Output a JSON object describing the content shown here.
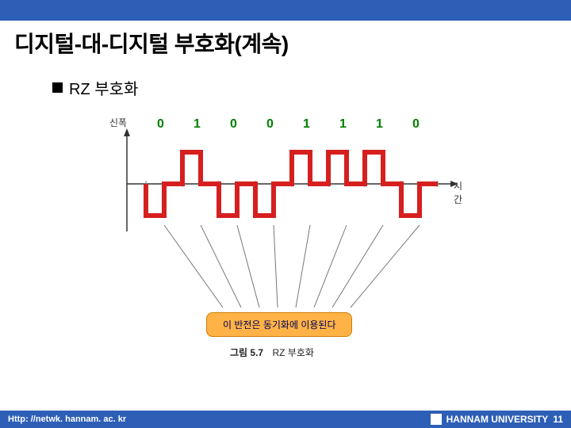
{
  "slide": {
    "title": "디지털-대-디지털 부호화(계속)",
    "bullet": "RZ 부호화",
    "bits": [
      "0",
      "1",
      "0",
      "0",
      "1",
      "1",
      "1",
      "0"
    ],
    "yAxisLabel": "신폭",
    "xAxisLabel": "시간",
    "captionBox": "이 반전은 동기화에 이용된다",
    "figLabel": "그림 5.7",
    "figTitle": "RZ 부호화"
  },
  "footer": {
    "url": "Http: //netwk. hannam. ac. kr",
    "uni": "HANNAM  UNIVERSITY",
    "page": "11"
  },
  "chart": {
    "colors": {
      "waveform": "#d61f1f",
      "axis": "#333333",
      "bit": "#008000",
      "tick": "#888888",
      "guideline": "#777777",
      "captionFill": "#ffb347",
      "captionStroke": "#d17b00"
    },
    "geometry": {
      "bitSlotWidth": 46,
      "bitStartX": 64,
      "axisXStart": 40,
      "axisXEnd": 450,
      "baselineY": 80,
      "highY": 40,
      "lowY": 120,
      "waveformStrokeWidth": 6
    }
  }
}
